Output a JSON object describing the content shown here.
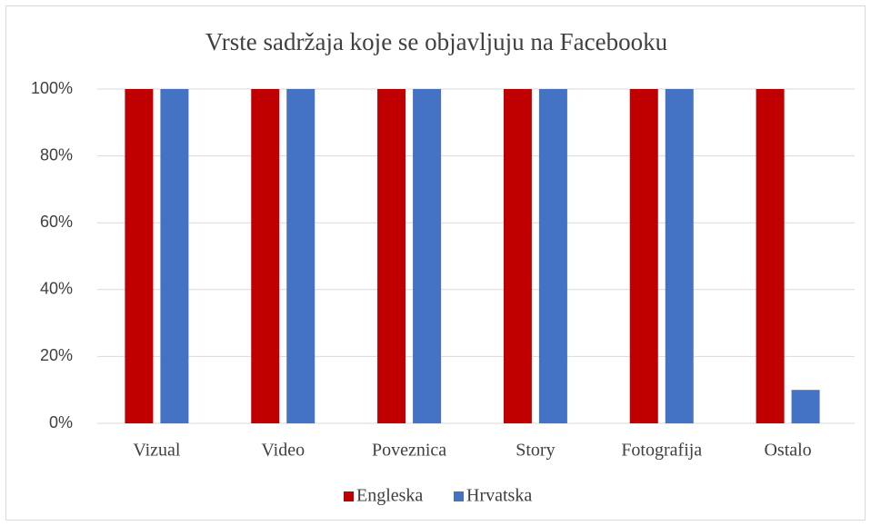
{
  "chart_data": {
    "type": "bar",
    "title": "Vrste sadržaja koje se objavljuju na Facebooku",
    "categories": [
      "Vizual",
      "Video",
      "Poveznica",
      "Story",
      "Fotografija",
      "Ostalo"
    ],
    "series": [
      {
        "name": "Engleska",
        "color": "#c00000",
        "values": [
          100,
          100,
          100,
          100,
          100,
          100
        ]
      },
      {
        "name": "Hrvatska",
        "color": "#4472c4",
        "values": [
          100,
          100,
          100,
          100,
          100,
          10
        ]
      }
    ],
    "ylim": [
      0,
      100
    ],
    "yticks": [
      {
        "value": 0,
        "label": "0%"
      },
      {
        "value": 20,
        "label": "20%"
      },
      {
        "value": 40,
        "label": "40%"
      },
      {
        "value": 60,
        "label": "60%"
      },
      {
        "value": 80,
        "label": "80%"
      },
      {
        "value": 100,
        "label": "100%"
      }
    ],
    "grid": true,
    "legend": "bottom"
  }
}
